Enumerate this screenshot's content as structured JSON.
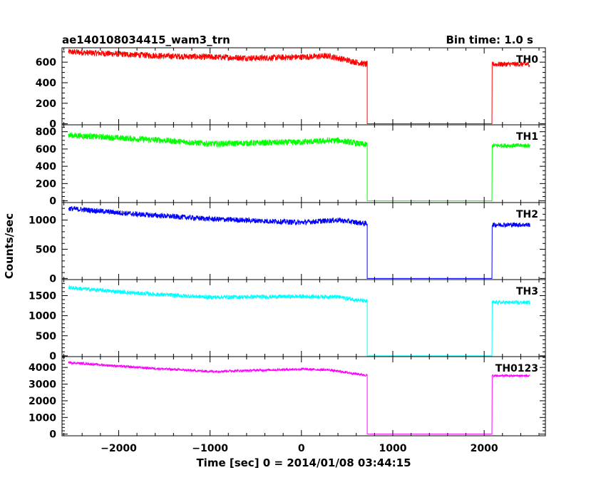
{
  "figure": {
    "title": "ae140108034415_wam3_trn",
    "bin_time": "Bin time: 1.0 s",
    "ylabel": "Counts/sec",
    "xlabel": "Time [sec] 0 = 2014/01/08 03:44:15"
  },
  "chart_data": {
    "type": "line",
    "x_axis": {
      "label": "Time [sec] 0 = 2014/01/08 03:44:15",
      "range": [
        -2620,
        2670
      ],
      "ticks": [
        -2000,
        -1000,
        0,
        1000,
        2000
      ],
      "tick_labels": [
        "−2000",
        "−1000",
        "0",
        "1000",
        "2000"
      ],
      "minor_step": 200
    },
    "grid": false,
    "data_gap": [
      720,
      2085
    ],
    "panels": [
      {
        "name": "TH0",
        "color": "#ff0000",
        "ylim": [
          -10,
          740
        ],
        "yticks": [
          0,
          200,
          400,
          600
        ],
        "minor_step": 50,
        "profile": [
          [
            -2550,
            700
          ],
          [
            -1500,
            660
          ],
          [
            -500,
            640
          ],
          [
            0,
            650
          ],
          [
            300,
            660
          ],
          [
            500,
            620
          ],
          [
            700,
            580
          ]
        ],
        "noise": 30,
        "tail_level": 580,
        "tail_noise": 25
      },
      {
        "name": "TH1",
        "color": "#00ff00",
        "ylim": [
          -20,
          880
        ],
        "yticks": [
          0,
          200,
          400,
          600,
          800
        ],
        "minor_step": 50,
        "profile": [
          [
            -2550,
            760
          ],
          [
            -1500,
            700
          ],
          [
            -1000,
            660
          ],
          [
            0,
            680
          ],
          [
            400,
            700
          ],
          [
            700,
            650
          ]
        ],
        "noise": 35,
        "tail_level": 640,
        "tail_noise": 25
      },
      {
        "name": "TH2",
        "color": "#0000ff",
        "ylim": [
          -20,
          1300
        ],
        "yticks": [
          0,
          500,
          1000
        ],
        "minor_step": 100,
        "profile": [
          [
            -2550,
            1200
          ],
          [
            -1800,
            1100
          ],
          [
            -1000,
            1020
          ],
          [
            0,
            960
          ],
          [
            400,
            1000
          ],
          [
            700,
            940
          ]
        ],
        "noise": 45,
        "tail_level": 920,
        "tail_noise": 40
      },
      {
        "name": "TH3",
        "color": "#00ffff",
        "ylim": [
          -20,
          1900
        ],
        "yticks": [
          0,
          500,
          1000,
          1500
        ],
        "minor_step": 100,
        "profile": [
          [
            -2550,
            1700
          ],
          [
            -1800,
            1560
          ],
          [
            -1000,
            1460
          ],
          [
            0,
            1480
          ],
          [
            400,
            1470
          ],
          [
            700,
            1360
          ]
        ],
        "noise": 50,
        "tail_level": 1330,
        "tail_noise": 45
      },
      {
        "name": "TH0123",
        "color": "#ff00ff",
        "ylim": [
          -100,
          4650
        ],
        "yticks": [
          0,
          1000,
          2000,
          3000,
          4000
        ],
        "minor_step": 200,
        "profile": [
          [
            -2550,
            4300
          ],
          [
            -1800,
            4000
          ],
          [
            -1000,
            3760
          ],
          [
            0,
            3900
          ],
          [
            300,
            3850
          ],
          [
            700,
            3540
          ]
        ],
        "noise": 70,
        "tail_level": 3500,
        "tail_noise": 60
      }
    ]
  }
}
